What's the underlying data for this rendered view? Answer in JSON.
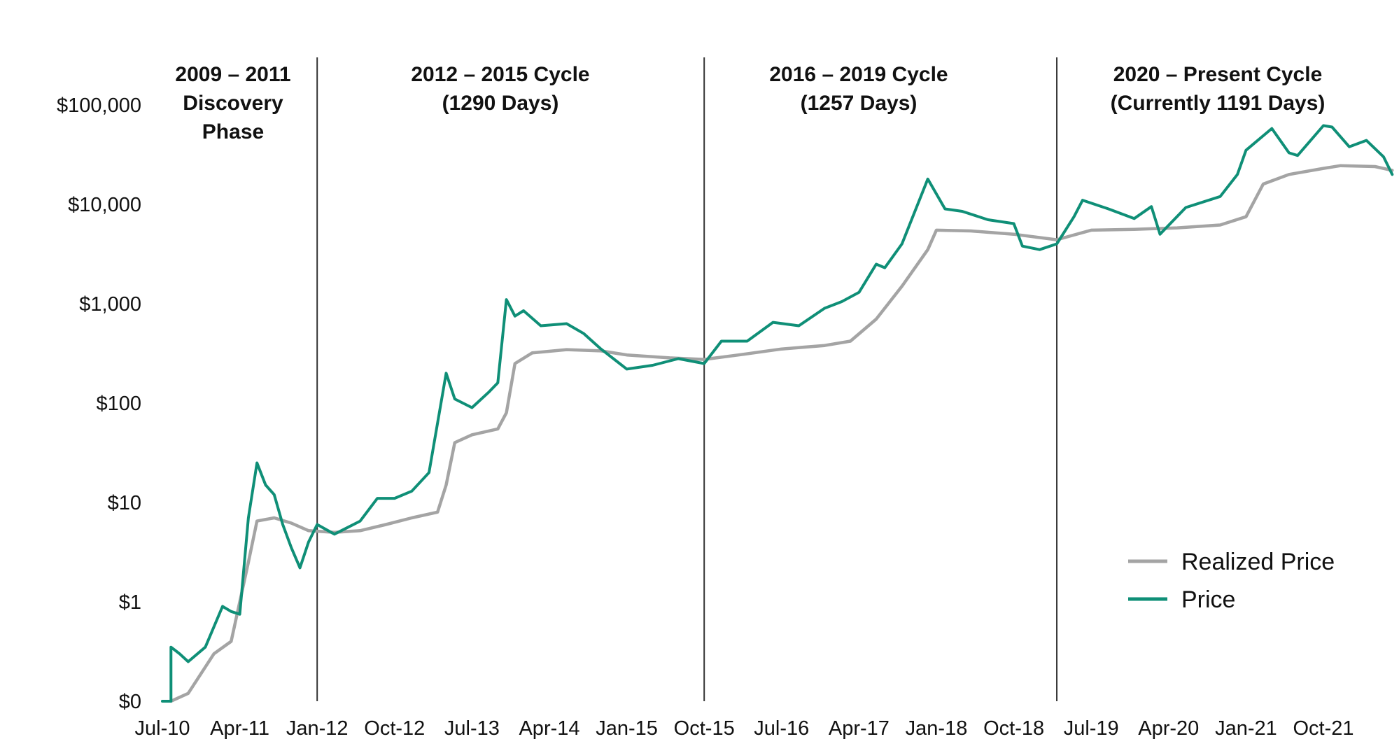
{
  "chart_data": {
    "type": "line",
    "title": "",
    "xlabel": "",
    "ylabel": "",
    "y_scale": "log",
    "y_ticks": [
      {
        "value": 0.1,
        "label": "$0"
      },
      {
        "value": 1,
        "label": "$1"
      },
      {
        "value": 10,
        "label": "$10"
      },
      {
        "value": 100,
        "label": "$100"
      },
      {
        "value": 1000,
        "label": "$1,000"
      },
      {
        "value": 10000,
        "label": "$10,000"
      },
      {
        "value": 100000,
        "label": "$100,000"
      }
    ],
    "x_ticks": [
      "Jul-10",
      "Apr-11",
      "Jan-12",
      "Oct-12",
      "Jul-13",
      "Apr-14",
      "Jan-15",
      "Oct-15",
      "Jul-16",
      "Apr-17",
      "Jan-18",
      "Oct-18",
      "Jul-19",
      "Apr-20",
      "Jan-21",
      "Oct-21"
    ],
    "x_range": [
      "2010-07",
      "2022-06"
    ],
    "ylim": [
      0.1,
      100000
    ],
    "grid": false,
    "legend_position": "bottom-right",
    "colors": {
      "price": "#0f8f77",
      "realized": "#a4a4a4",
      "divider": "#333333"
    },
    "cycles": [
      {
        "lines": [
          "2009 – 2011",
          "Discovery",
          "Phase"
        ],
        "start": null
      },
      {
        "lines": [
          "2012 – 2015 Cycle",
          "(1290 Days)"
        ],
        "start": "2012-01"
      },
      {
        "lines": [
          "2016 – 2019 Cycle",
          "(1257 Days)"
        ],
        "start": "2015-10"
      },
      {
        "lines": [
          "2020 – Present Cycle",
          "(Currently 1191 Days)"
        ],
        "start": "2019-03"
      }
    ],
    "series": [
      {
        "name": "Realized Price",
        "key": "realized",
        "points": [
          [
            "2010-08",
            0.1
          ],
          [
            "2010-10",
            0.12
          ],
          [
            "2011-01",
            0.3
          ],
          [
            "2011-03",
            0.4
          ],
          [
            "2011-05",
            2.5
          ],
          [
            "2011-06",
            6.5
          ],
          [
            "2011-08",
            7.0
          ],
          [
            "2011-10",
            6.2
          ],
          [
            "2011-12",
            5.2
          ],
          [
            "2012-03",
            5.0
          ],
          [
            "2012-06",
            5.2
          ],
          [
            "2012-09",
            6.0
          ],
          [
            "2012-12",
            7.0
          ],
          [
            "2013-03",
            8.0
          ],
          [
            "2013-04",
            15
          ],
          [
            "2013-05",
            40
          ],
          [
            "2013-07",
            48
          ],
          [
            "2013-10",
            55
          ],
          [
            "2013-11",
            80
          ],
          [
            "2013-12",
            250
          ],
          [
            "2014-02",
            320
          ],
          [
            "2014-06",
            345
          ],
          [
            "2014-10",
            335
          ],
          [
            "2015-01",
            305
          ],
          [
            "2015-06",
            285
          ],
          [
            "2015-10",
            275
          ],
          [
            "2016-02",
            305
          ],
          [
            "2016-07",
            350
          ],
          [
            "2016-12",
            380
          ],
          [
            "2017-03",
            420
          ],
          [
            "2017-06",
            700
          ],
          [
            "2017-09",
            1500
          ],
          [
            "2017-12",
            3500
          ],
          [
            "2018-01",
            5500
          ],
          [
            "2018-05",
            5400
          ],
          [
            "2018-10",
            5000
          ],
          [
            "2019-03",
            4400
          ],
          [
            "2019-07",
            5500
          ],
          [
            "2019-12",
            5600
          ],
          [
            "2020-05",
            5800
          ],
          [
            "2020-10",
            6200
          ],
          [
            "2021-01",
            7500
          ],
          [
            "2021-03",
            16000
          ],
          [
            "2021-06",
            20000
          ],
          [
            "2021-10",
            23000
          ],
          [
            "2021-12",
            24500
          ],
          [
            "2022-04",
            24000
          ],
          [
            "2022-06",
            22000
          ]
        ]
      },
      {
        "name": "Price",
        "key": "price",
        "points": [
          [
            "2010-07",
            0.1
          ],
          [
            "2010-08",
            0.1
          ],
          [
            "2010-08",
            0.35
          ],
          [
            "2010-09",
            0.3
          ],
          [
            "2010-10",
            0.25
          ],
          [
            "2010-12",
            0.35
          ],
          [
            "2011-02",
            0.9
          ],
          [
            "2011-03",
            0.8
          ],
          [
            "2011-04",
            0.75
          ],
          [
            "2011-05",
            7.0
          ],
          [
            "2011-06",
            25
          ],
          [
            "2011-07",
            15
          ],
          [
            "2011-08",
            12
          ],
          [
            "2011-09",
            6.0
          ],
          [
            "2011-10",
            3.5
          ],
          [
            "2011-11",
            2.2
          ],
          [
            "2011-12",
            4.0
          ],
          [
            "2012-01",
            6.0
          ],
          [
            "2012-03",
            4.8
          ],
          [
            "2012-06",
            6.5
          ],
          [
            "2012-08",
            11
          ],
          [
            "2012-10",
            11
          ],
          [
            "2012-12",
            13
          ],
          [
            "2013-02",
            20
          ],
          [
            "2013-04",
            200
          ],
          [
            "2013-05",
            110
          ],
          [
            "2013-07",
            90
          ],
          [
            "2013-09",
            130
          ],
          [
            "2013-10",
            160
          ],
          [
            "2013-11",
            1100
          ],
          [
            "2013-12",
            750
          ],
          [
            "2014-01",
            850
          ],
          [
            "2014-03",
            600
          ],
          [
            "2014-06",
            630
          ],
          [
            "2014-08",
            500
          ],
          [
            "2014-10",
            350
          ],
          [
            "2015-01",
            220
          ],
          [
            "2015-04",
            240
          ],
          [
            "2015-07",
            280
          ],
          [
            "2015-10",
            250
          ],
          [
            "2015-12",
            420
          ],
          [
            "2016-03",
            420
          ],
          [
            "2016-06",
            650
          ],
          [
            "2016-09",
            600
          ],
          [
            "2016-12",
            900
          ],
          [
            "2017-02",
            1050
          ],
          [
            "2017-04",
            1300
          ],
          [
            "2017-06",
            2500
          ],
          [
            "2017-07",
            2300
          ],
          [
            "2017-09",
            4000
          ],
          [
            "2017-12",
            18000
          ],
          [
            "2018-02",
            9000
          ],
          [
            "2018-04",
            8500
          ],
          [
            "2018-07",
            7000
          ],
          [
            "2018-10",
            6400
          ],
          [
            "2018-11",
            3800
          ],
          [
            "2019-01",
            3500
          ],
          [
            "2019-03",
            4000
          ],
          [
            "2019-05",
            7500
          ],
          [
            "2019-06",
            11000
          ],
          [
            "2019-09",
            9000
          ],
          [
            "2019-12",
            7200
          ],
          [
            "2020-02",
            9500
          ],
          [
            "2020-03",
            5000
          ],
          [
            "2020-06",
            9300
          ],
          [
            "2020-10",
            12000
          ],
          [
            "2020-12",
            20000
          ],
          [
            "2021-01",
            35000
          ],
          [
            "2021-04",
            58000
          ],
          [
            "2021-06",
            33000
          ],
          [
            "2021-07",
            31000
          ],
          [
            "2021-10",
            62000
          ],
          [
            "2021-11",
            60000
          ],
          [
            "2022-01",
            38000
          ],
          [
            "2022-03",
            44000
          ],
          [
            "2022-05",
            30000
          ],
          [
            "2022-06",
            20000
          ]
        ]
      }
    ]
  }
}
